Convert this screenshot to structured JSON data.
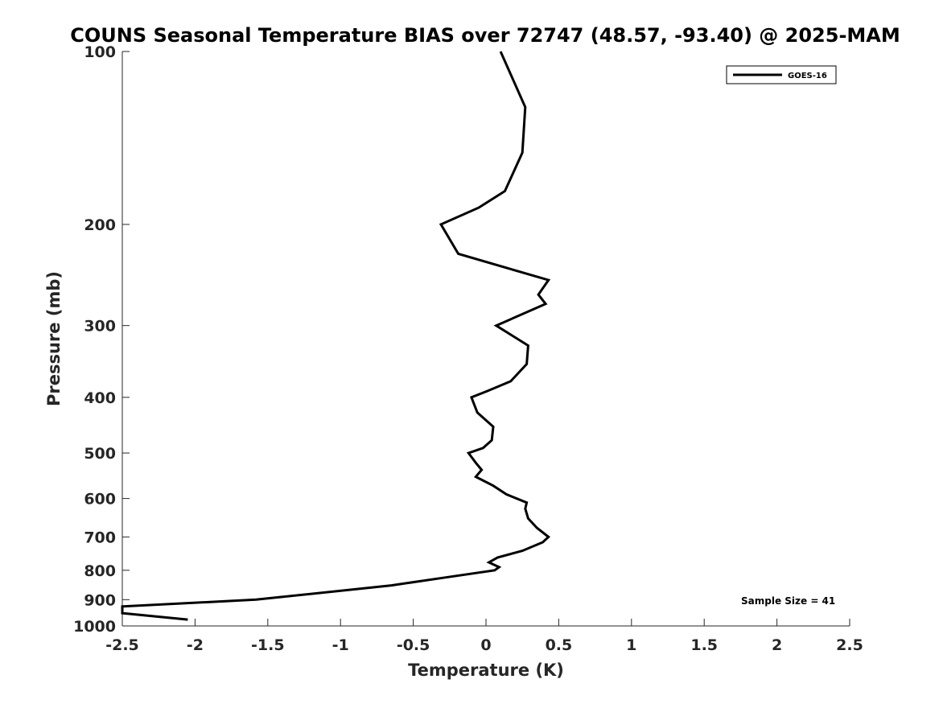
{
  "chart_data": {
    "type": "line",
    "title": "COUNS Seasonal Temperature BIAS over 72747 (48.57, -93.40) @ 2025-MAM",
    "xlabel": "Temperature (K)",
    "ylabel": "Pressure (mb)",
    "xlim": [
      -2.5,
      2.5
    ],
    "ylim": [
      1000,
      100
    ],
    "y_scale": "log",
    "y_reversed": true,
    "grid": false,
    "legend_position": "top-right",
    "x_ticks": [
      "-2.5",
      "-2",
      "-1.5",
      "-1",
      "-0.5",
      "0",
      "0.5",
      "1",
      "1.5",
      "2",
      "2.5"
    ],
    "y_ticks": [
      "100",
      "200",
      "300",
      "400",
      "500",
      "600",
      "700",
      "800",
      "900",
      "1000"
    ],
    "annotation": "Sample Size = 41",
    "series": [
      {
        "name": "GOES-16",
        "color": "#000000",
        "points": [
          {
            "x": 0.1,
            "y": 100
          },
          {
            "x": 0.27,
            "y": 125
          },
          {
            "x": 0.25,
            "y": 150
          },
          {
            "x": 0.13,
            "y": 175
          },
          {
            "x": -0.05,
            "y": 187
          },
          {
            "x": -0.31,
            "y": 200
          },
          {
            "x": -0.19,
            "y": 225
          },
          {
            "x": 0.43,
            "y": 250
          },
          {
            "x": 0.36,
            "y": 265
          },
          {
            "x": 0.41,
            "y": 275
          },
          {
            "x": 0.07,
            "y": 300
          },
          {
            "x": 0.29,
            "y": 325
          },
          {
            "x": 0.28,
            "y": 350
          },
          {
            "x": 0.17,
            "y": 375
          },
          {
            "x": 0.01,
            "y": 390
          },
          {
            "x": -0.1,
            "y": 400
          },
          {
            "x": -0.06,
            "y": 425
          },
          {
            "x": 0.05,
            "y": 450
          },
          {
            "x": 0.04,
            "y": 475
          },
          {
            "x": -0.02,
            "y": 490
          },
          {
            "x": -0.12,
            "y": 500
          },
          {
            "x": -0.07,
            "y": 520
          },
          {
            "x": -0.03,
            "y": 535
          },
          {
            "x": -0.07,
            "y": 550
          },
          {
            "x": 0.05,
            "y": 570
          },
          {
            "x": 0.14,
            "y": 590
          },
          {
            "x": 0.28,
            "y": 610
          },
          {
            "x": 0.27,
            "y": 625
          },
          {
            "x": 0.29,
            "y": 650
          },
          {
            "x": 0.35,
            "y": 675
          },
          {
            "x": 0.43,
            "y": 700
          },
          {
            "x": 0.39,
            "y": 715
          },
          {
            "x": 0.25,
            "y": 740
          },
          {
            "x": 0.08,
            "y": 760
          },
          {
            "x": 0.02,
            "y": 775
          },
          {
            "x": 0.09,
            "y": 790
          },
          {
            "x": 0.06,
            "y": 800
          },
          {
            "x": -0.3,
            "y": 825
          },
          {
            "x": -0.65,
            "y": 850
          },
          {
            "x": -1.58,
            "y": 900
          },
          {
            "x": -2.5,
            "y": 925
          },
          {
            "x": -2.5,
            "y": 950
          },
          {
            "x": -2.05,
            "y": 975
          }
        ]
      }
    ]
  }
}
